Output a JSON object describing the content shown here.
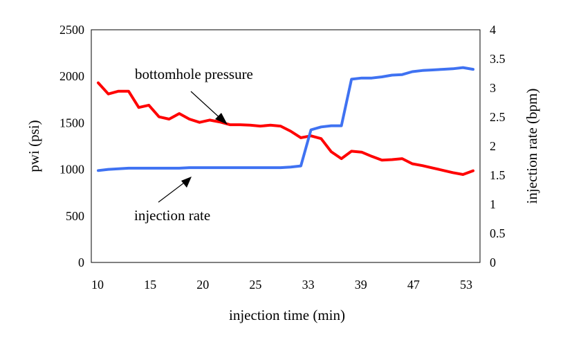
{
  "chart_data": {
    "type": "line",
    "xlabel": "injection time (min)",
    "ylabel_left": "pwi (psi)",
    "ylabel_right": "injection rate (bpm)",
    "x_ticks": [
      "10",
      "15",
      "20",
      "25",
      "33",
      "39",
      "47",
      "53"
    ],
    "y_left_ticks": [
      "0",
      "500",
      "1000",
      "1500",
      "2000",
      "2500"
    ],
    "y_right_ticks": [
      "0",
      "0.5",
      "1",
      "1.5",
      "2",
      "2.5",
      "3",
      "3.5",
      "4"
    ],
    "ylim_left": [
      0,
      2500
    ],
    "ylim_right": [
      0,
      4
    ],
    "annotations": {
      "pressure_label": "bottomhole pressure",
      "rate_label": "injection rate"
    },
    "grid": false,
    "legend": "none",
    "series": [
      {
        "key": "pressure",
        "axis": "left",
        "color": "#ff0000",
        "points": [
          [
            0,
            1930
          ],
          [
            1,
            1810
          ],
          [
            2,
            1840
          ],
          [
            3,
            1840
          ],
          [
            4,
            1665
          ],
          [
            5,
            1690
          ],
          [
            6,
            1565
          ],
          [
            7,
            1540
          ],
          [
            8,
            1600
          ],
          [
            9,
            1540
          ],
          [
            10,
            1505
          ],
          [
            11,
            1530
          ],
          [
            12,
            1510
          ],
          [
            13,
            1480
          ],
          [
            14,
            1480
          ],
          [
            15,
            1475
          ],
          [
            16,
            1465
          ],
          [
            17,
            1475
          ],
          [
            18,
            1465
          ],
          [
            19,
            1410
          ],
          [
            20,
            1340
          ],
          [
            21,
            1360
          ],
          [
            22,
            1330
          ],
          [
            23,
            1190
          ],
          [
            24,
            1115
          ],
          [
            25,
            1195
          ],
          [
            26,
            1185
          ],
          [
            27,
            1140
          ],
          [
            28,
            1100
          ],
          [
            29,
            1105
          ],
          [
            30,
            1115
          ],
          [
            31,
            1060
          ],
          [
            32,
            1040
          ],
          [
            33,
            1015
          ],
          [
            34,
            990
          ],
          [
            35,
            965
          ],
          [
            36,
            945
          ],
          [
            37,
            985
          ]
        ]
      },
      {
        "key": "rate",
        "axis": "right",
        "color": "#3f72f2",
        "points": [
          [
            0,
            1.58
          ],
          [
            1,
            1.6
          ],
          [
            2,
            1.61
          ],
          [
            3,
            1.62
          ],
          [
            4,
            1.62
          ],
          [
            5,
            1.62
          ],
          [
            6,
            1.62
          ],
          [
            7,
            1.62
          ],
          [
            8,
            1.62
          ],
          [
            9,
            1.63
          ],
          [
            10,
            1.63
          ],
          [
            11,
            1.63
          ],
          [
            12,
            1.63
          ],
          [
            13,
            1.63
          ],
          [
            14,
            1.63
          ],
          [
            15,
            1.63
          ],
          [
            16,
            1.63
          ],
          [
            17,
            1.63
          ],
          [
            18,
            1.63
          ],
          [
            19,
            1.64
          ],
          [
            20,
            1.66
          ],
          [
            21,
            2.28
          ],
          [
            22,
            2.33
          ],
          [
            23,
            2.35
          ],
          [
            24,
            2.35
          ],
          [
            25,
            3.15
          ],
          [
            26,
            3.17
          ],
          [
            27,
            3.17
          ],
          [
            28,
            3.19
          ],
          [
            29,
            3.22
          ],
          [
            30,
            3.23
          ],
          [
            31,
            3.28
          ],
          [
            32,
            3.3
          ],
          [
            33,
            3.31
          ],
          [
            34,
            3.32
          ],
          [
            35,
            3.33
          ],
          [
            36,
            3.35
          ],
          [
            37,
            3.32
          ]
        ]
      }
    ]
  }
}
